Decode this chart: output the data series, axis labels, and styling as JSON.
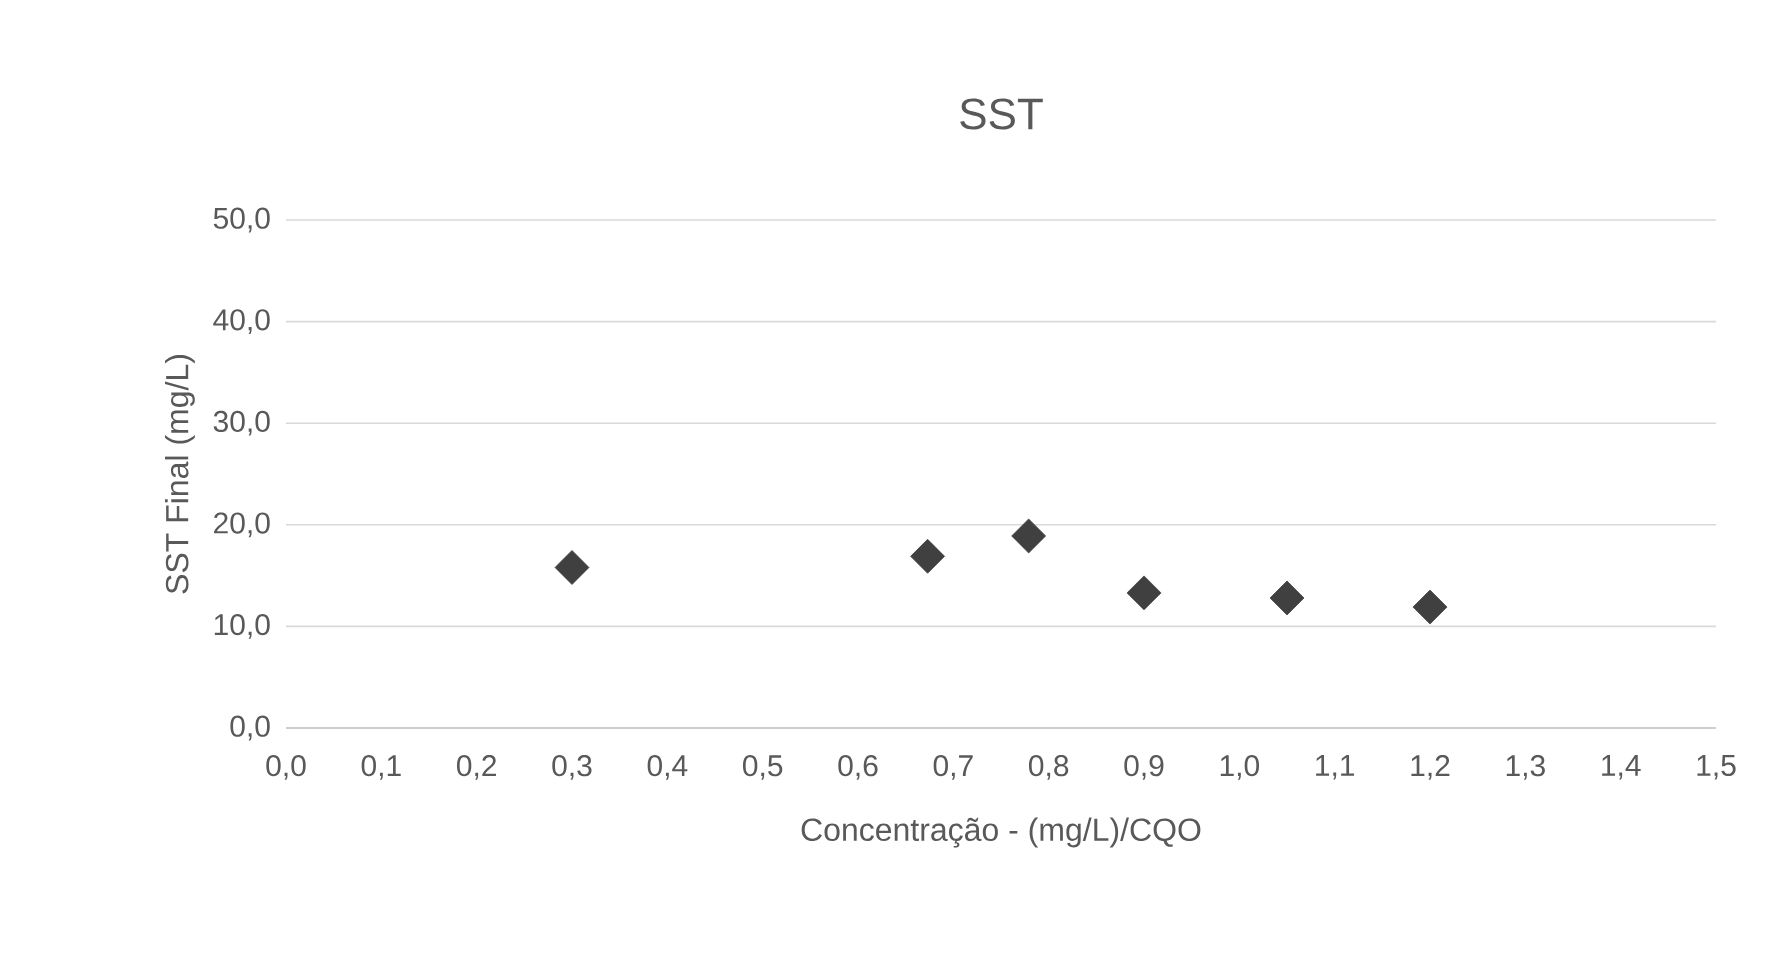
{
  "chart_data": {
    "type": "scatter",
    "title": "SST",
    "xlabel": "Concentração - (mg/L)/CQO",
    "ylabel": "SST Final (mg/L)",
    "x": [
      0.3,
      0.673,
      0.779,
      0.9,
      1.05,
      1.2
    ],
    "series": [
      {
        "color": "#404040",
        "values": [
          15.8,
          16.9,
          18.9,
          13.3,
          12.8,
          11.9
        ]
      }
    ],
    "xlim": [
      0,
      1.5
    ],
    "ylim": [
      0,
      50
    ],
    "xticks": [
      {
        "value": 0,
        "label": "0,0"
      },
      {
        "value": 0.1,
        "label": "0,1"
      },
      {
        "value": 0.2,
        "label": "0,2"
      },
      {
        "value": 0.3,
        "label": "0,3"
      },
      {
        "value": 0.4,
        "label": "0,4"
      },
      {
        "value": 0.5,
        "label": "0,5"
      },
      {
        "value": 0.6,
        "label": "0,6"
      },
      {
        "value": 0.7,
        "label": "0,7"
      },
      {
        "value": 0.8,
        "label": "0,8"
      },
      {
        "value": 0.9,
        "label": "0,9"
      },
      {
        "value": 1.0,
        "label": "1,0"
      },
      {
        "value": 1.1,
        "label": "1,1"
      },
      {
        "value": 1.2,
        "label": "1,2"
      },
      {
        "value": 1.3,
        "label": "1,3"
      },
      {
        "value": 1.4,
        "label": "1,4"
      },
      {
        "value": 1.5,
        "label": "1,5"
      }
    ],
    "yticks": [
      {
        "value": 0,
        "label": "0,0"
      },
      {
        "value": 10,
        "label": "10,0"
      },
      {
        "value": 20,
        "label": "20,0"
      },
      {
        "value": 30,
        "label": "30,0"
      },
      {
        "value": 40,
        "label": "40,0"
      },
      {
        "value": 50,
        "label": "50,0"
      }
    ],
    "grid": "y",
    "marker": "diamond",
    "legend": false
  }
}
